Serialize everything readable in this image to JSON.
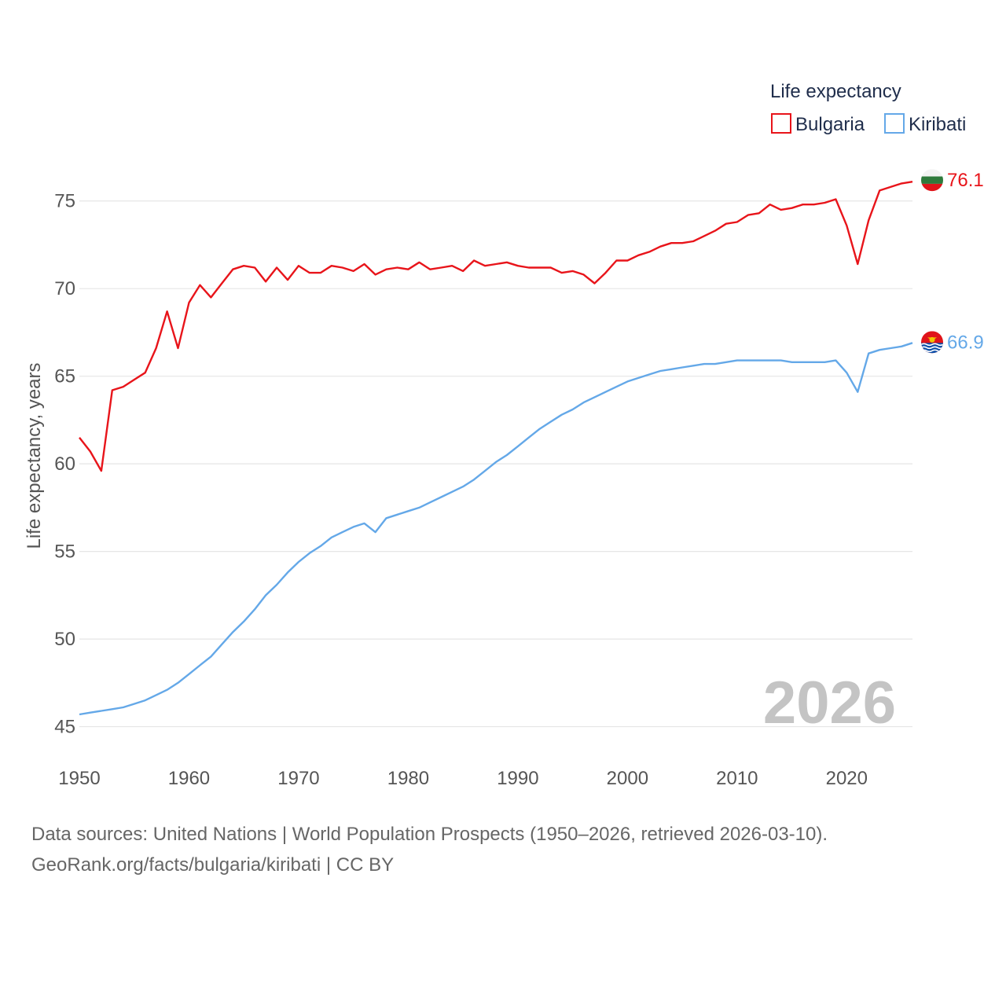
{
  "chart_data": {
    "type": "line",
    "legend_title": "Life expectancy",
    "ylabel": "Life expectancy, years",
    "xlabel": "",
    "xlim": [
      1950,
      2026
    ],
    "ylim": [
      43.5,
      77.5
    ],
    "x_ticks": [
      1950,
      1960,
      1970,
      1980,
      1990,
      2000,
      2010,
      2020
    ],
    "y_ticks": [
      45,
      50,
      55,
      60,
      65,
      70,
      75
    ],
    "current_year": "2026",
    "x": [
      1950,
      1951,
      1952,
      1953,
      1954,
      1955,
      1956,
      1957,
      1958,
      1959,
      1960,
      1961,
      1962,
      1963,
      1964,
      1965,
      1966,
      1967,
      1968,
      1969,
      1970,
      1971,
      1972,
      1973,
      1974,
      1975,
      1976,
      1977,
      1978,
      1979,
      1980,
      1981,
      1982,
      1983,
      1984,
      1985,
      1986,
      1987,
      1988,
      1989,
      1990,
      1991,
      1992,
      1993,
      1994,
      1995,
      1996,
      1997,
      1998,
      1999,
      2000,
      2001,
      2002,
      2003,
      2004,
      2005,
      2006,
      2007,
      2008,
      2009,
      2010,
      2011,
      2012,
      2013,
      2014,
      2015,
      2016,
      2017,
      2018,
      2019,
      2020,
      2021,
      2022,
      2023,
      2024,
      2025,
      2026
    ],
    "series": [
      {
        "name": "Bulgaria",
        "color": "#e8141a",
        "end_label": "76.1",
        "values": [
          61.5,
          60.7,
          59.6,
          64.2,
          64.4,
          64.8,
          65.2,
          66.6,
          68.7,
          66.6,
          69.2,
          70.2,
          69.5,
          70.3,
          71.1,
          71.3,
          71.2,
          70.4,
          71.2,
          70.5,
          71.3,
          70.9,
          70.9,
          71.3,
          71.2,
          71.0,
          71.4,
          70.8,
          71.1,
          71.2,
          71.1,
          71.5,
          71.1,
          71.2,
          71.3,
          71.0,
          71.6,
          71.3,
          71.4,
          71.5,
          71.3,
          71.2,
          71.2,
          71.2,
          70.9,
          71.0,
          70.8,
          70.3,
          70.9,
          71.6,
          71.6,
          71.9,
          72.1,
          72.4,
          72.6,
          72.6,
          72.7,
          73.0,
          73.3,
          73.7,
          73.8,
          74.2,
          74.3,
          74.8,
          74.5,
          74.6,
          74.8,
          74.8,
          74.9,
          75.1,
          73.6,
          71.4,
          73.9,
          75.6,
          75.8,
          76.0,
          76.1
        ]
      },
      {
        "name": "Kiribati",
        "color": "#64a8e8",
        "end_label": "66.9",
        "values": [
          45.7,
          45.8,
          45.9,
          46.0,
          46.1,
          46.3,
          46.5,
          46.8,
          47.1,
          47.5,
          48.0,
          48.5,
          49.0,
          49.7,
          50.4,
          51.0,
          51.7,
          52.5,
          53.1,
          53.8,
          54.4,
          54.9,
          55.3,
          55.8,
          56.1,
          56.4,
          56.6,
          56.1,
          56.9,
          57.1,
          57.3,
          57.5,
          57.8,
          58.1,
          58.4,
          58.7,
          59.1,
          59.6,
          60.1,
          60.5,
          61.0,
          61.5,
          62.0,
          62.4,
          62.8,
          63.1,
          63.5,
          63.8,
          64.1,
          64.4,
          64.7,
          64.9,
          65.1,
          65.3,
          65.4,
          65.5,
          65.6,
          65.7,
          65.7,
          65.8,
          65.9,
          65.9,
          65.9,
          65.9,
          65.9,
          65.8,
          65.8,
          65.8,
          65.8,
          65.9,
          65.2,
          64.1,
          66.3,
          66.5,
          66.6,
          66.7,
          66.9
        ]
      }
    ]
  },
  "footer": {
    "source_line_1": "Data sources: United Nations | World Population Prospects (1950–2026, retrieved 2026-03-10).",
    "source_line_2": "GeoRank.org/facts/bulgaria/kiribati | CC BY"
  },
  "flags": {
    "bulgaria": {
      "icon": "bulgaria-flag-icon",
      "colors": [
        "#f3f3f3",
        "#2f7a3c",
        "#e0141a"
      ]
    },
    "kiribati": {
      "icon": "kiribati-flag-icon",
      "colors": [
        "#e0141a",
        "#f2c500",
        "#0d4fa8",
        "#ffffff"
      ]
    }
  }
}
